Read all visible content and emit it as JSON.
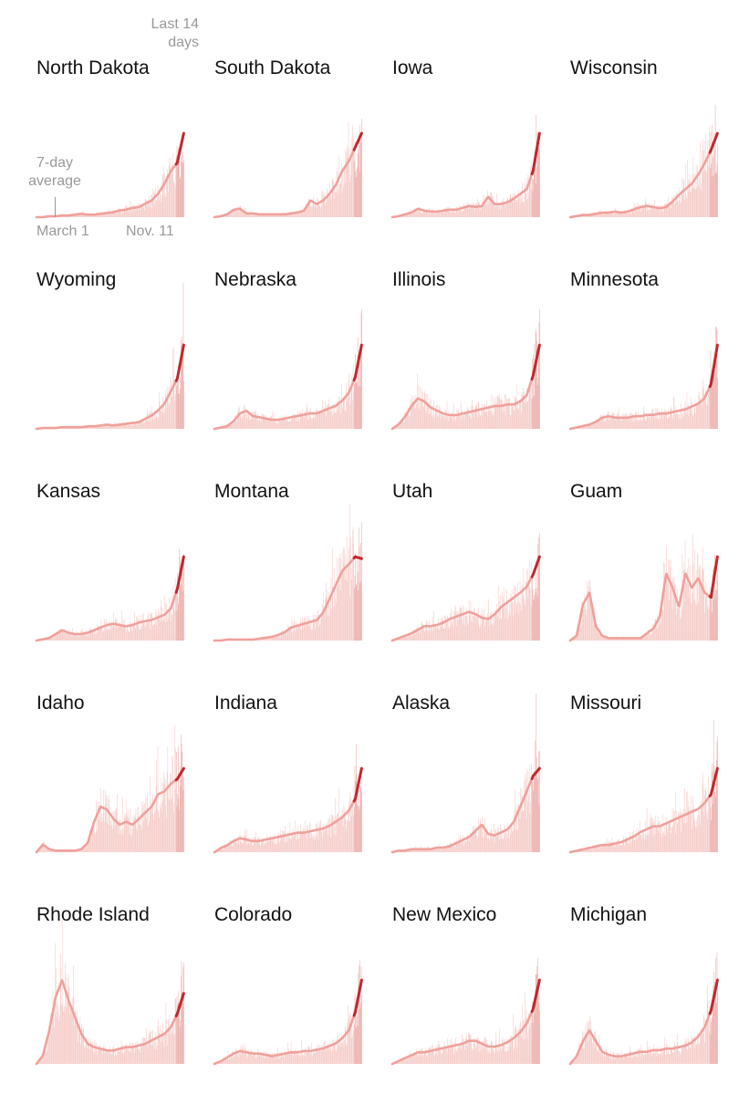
{
  "annotations": {
    "last14_line1": "Last 14",
    "last14_line2": "days",
    "avg_line1": "7-day",
    "avg_line2": "average",
    "x_start": "March 1",
    "x_end": "Nov. 11"
  },
  "colors": {
    "daily_bars": "#f4c7c3",
    "last14_bars": "#e9a5a1",
    "average_line": "#f0a09b",
    "last14_line": "#c1272d",
    "title_text": "#121212",
    "annotation_text": "#999999"
  },
  "chart_data": {
    "type": "area",
    "description_series": "daily new cases with 7-day average, small multiples by state",
    "x_range": [
      "March 1",
      "Nov. 11"
    ],
    "highlight_last_days": 14,
    "panels": [
      {
        "title": "North Dakota",
        "avg": [
          0,
          0,
          1,
          1,
          2,
          2,
          3,
          4,
          3,
          3,
          4,
          5,
          6,
          8,
          9,
          11,
          12,
          16,
          20,
          28,
          40,
          55,
          65,
          100
        ]
      },
      {
        "title": "South Dakota",
        "avg": [
          0,
          1,
          3,
          8,
          9,
          4,
          4,
          3,
          3,
          3,
          3,
          3,
          4,
          5,
          7,
          18,
          14,
          18,
          25,
          35,
          50,
          60,
          75,
          90
        ]
      },
      {
        "title": "Iowa",
        "avg": [
          0,
          1,
          3,
          5,
          9,
          7,
          6,
          6,
          7,
          8,
          8,
          10,
          12,
          11,
          12,
          22,
          14,
          14,
          16,
          20,
          25,
          30,
          50,
          90
        ]
      },
      {
        "title": "Wisconsin",
        "avg": [
          0,
          1,
          2,
          2,
          3,
          4,
          4,
          5,
          4,
          5,
          7,
          9,
          10,
          9,
          8,
          9,
          14,
          20,
          25,
          30,
          38,
          48,
          60,
          75
        ]
      },
      {
        "title": "Wyoming",
        "avg": [
          0,
          1,
          1,
          1,
          2,
          2,
          2,
          2,
          3,
          3,
          4,
          5,
          4,
          5,
          6,
          7,
          8,
          12,
          16,
          22,
          30,
          45,
          60,
          100
        ]
      },
      {
        "title": "Nebraska",
        "avg": [
          0,
          1,
          2,
          6,
          12,
          14,
          10,
          9,
          8,
          7,
          7,
          8,
          9,
          10,
          11,
          12,
          12,
          14,
          16,
          18,
          22,
          28,
          40,
          65
        ]
      },
      {
        "title": "Illinois",
        "avg": [
          0,
          3,
          8,
          15,
          20,
          18,
          14,
          12,
          10,
          9,
          9,
          10,
          11,
          12,
          13,
          14,
          15,
          15,
          16,
          16,
          18,
          22,
          35,
          55
        ]
      },
      {
        "title": "Minnesota",
        "avg": [
          0,
          1,
          2,
          3,
          5,
          8,
          9,
          8,
          8,
          8,
          9,
          9,
          10,
          10,
          11,
          11,
          12,
          13,
          14,
          16,
          18,
          22,
          32,
          60
        ]
      },
      {
        "title": "Kansas",
        "avg": [
          0,
          1,
          2,
          5,
          8,
          6,
          5,
          5,
          6,
          8,
          10,
          12,
          13,
          12,
          11,
          12,
          14,
          15,
          16,
          18,
          20,
          25,
          40,
          65
        ]
      },
      {
        "title": "Montana",
        "avg": [
          0,
          0,
          1,
          1,
          1,
          1,
          1,
          2,
          3,
          4,
          6,
          9,
          14,
          16,
          18,
          20,
          22,
          30,
          45,
          60,
          75,
          82,
          90,
          88
        ]
      },
      {
        "title": "Utah",
        "avg": [
          0,
          2,
          4,
          6,
          9,
          12,
          12,
          13,
          15,
          18,
          20,
          22,
          24,
          22,
          19,
          18,
          22,
          28,
          32,
          36,
          40,
          45,
          55,
          70
        ]
      },
      {
        "title": "Guam",
        "avg": [
          0,
          2,
          15,
          20,
          6,
          2,
          1,
          1,
          1,
          1,
          1,
          1,
          3,
          5,
          10,
          28,
          22,
          14,
          28,
          22,
          26,
          20,
          18,
          35
        ]
      },
      {
        "title": "Idaho",
        "avg": [
          0,
          5,
          2,
          1,
          1,
          1,
          1,
          2,
          6,
          20,
          30,
          28,
          22,
          18,
          20,
          18,
          22,
          26,
          30,
          38,
          40,
          45,
          48,
          55
        ]
      },
      {
        "title": "Indiana",
        "avg": [
          0,
          3,
          5,
          8,
          10,
          9,
          8,
          8,
          9,
          10,
          11,
          12,
          13,
          14,
          14,
          15,
          16,
          17,
          19,
          22,
          25,
          30,
          38,
          60
        ]
      },
      {
        "title": "Alaska",
        "avg": [
          0,
          1,
          1,
          2,
          2,
          2,
          2,
          3,
          3,
          4,
          6,
          8,
          10,
          14,
          18,
          12,
          11,
          13,
          15,
          20,
          30,
          40,
          50,
          55
        ]
      },
      {
        "title": "Missouri",
        "avg": [
          0,
          1,
          2,
          3,
          4,
          5,
          5,
          6,
          7,
          9,
          11,
          14,
          16,
          18,
          18,
          20,
          22,
          24,
          26,
          28,
          30,
          34,
          40,
          58
        ]
      },
      {
        "title": "Rhode Island",
        "avg": [
          0,
          5,
          20,
          40,
          50,
          38,
          28,
          18,
          12,
          10,
          9,
          8,
          8,
          9,
          10,
          10,
          11,
          12,
          14,
          16,
          18,
          22,
          30,
          42
        ]
      },
      {
        "title": "Colorado",
        "avg": [
          0,
          2,
          5,
          8,
          10,
          9,
          8,
          8,
          7,
          6,
          7,
          8,
          9,
          9,
          10,
          10,
          11,
          12,
          14,
          16,
          20,
          26,
          40,
          65
        ]
      },
      {
        "title": "New Mexico",
        "avg": [
          0,
          2,
          4,
          6,
          8,
          8,
          9,
          10,
          11,
          12,
          13,
          14,
          16,
          16,
          14,
          12,
          12,
          13,
          15,
          18,
          22,
          28,
          38,
          58
        ]
      },
      {
        "title": "Michigan",
        "avg": [
          0,
          5,
          15,
          22,
          15,
          8,
          6,
          5,
          5,
          6,
          7,
          8,
          8,
          9,
          9,
          10,
          10,
          11,
          12,
          14,
          18,
          24,
          35,
          55
        ]
      }
    ]
  }
}
